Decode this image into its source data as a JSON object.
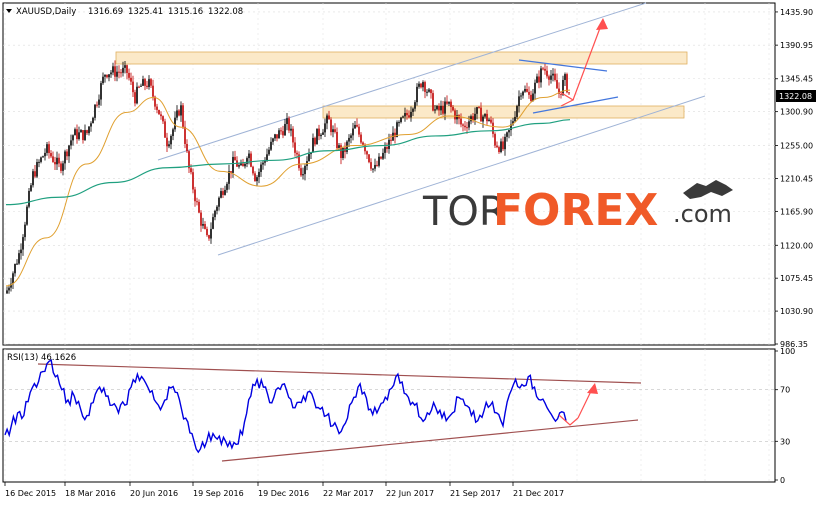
{
  "chart_data": [
    {
      "type": "candlestick",
      "symbol_header": "XAUUSD,Daily",
      "ohlc_header": [
        "1316.69",
        "1325.41",
        "1315.16",
        "1322.08"
      ],
      "price_label": "1322.08",
      "y_ticks": [
        "1435.90",
        "1390.95",
        "1345.45",
        "1300.90",
        "1255.00",
        "1210.45",
        "1165.90",
        "1120.00",
        "1075.45",
        "1030.90",
        "986.35"
      ],
      "x_ticks": [
        "16 Dec 2015",
        "18 Mar 2016",
        "20 Jun 2016",
        "19 Sep 2016",
        "19 Dec 2016",
        "22 Mar 2017",
        "22 Jun 2017",
        "21 Sep 2017",
        "21 Dec 2017"
      ],
      "ylim": [
        985,
        1448
      ],
      "price_path": [
        [
          0,
          1055
        ],
        [
          0.05,
          1110
        ],
        [
          0.1,
          1215
        ],
        [
          0.15,
          1250
        ],
        [
          0.2,
          1225
        ],
        [
          0.25,
          1270
        ],
        [
          0.3,
          1270
        ],
        [
          0.37,
          1355
        ],
        [
          0.45,
          1355
        ],
        [
          0.48,
          1320
        ],
        [
          0.5,
          1335
        ],
        [
          0.53,
          1340
        ],
        [
          0.57,
          1300
        ],
        [
          0.6,
          1260
        ],
        [
          0.62,
          1275
        ],
        [
          0.65,
          1310
        ],
        [
          0.68,
          1225
        ],
        [
          0.72,
          1160
        ],
        [
          0.75,
          1125
        ],
        [
          0.78,
          1170
        ],
        [
          0.8,
          1190
        ],
        [
          0.85,
          1235
        ],
        [
          0.88,
          1220
        ],
        [
          0.9,
          1250
        ],
        [
          0.93,
          1210
        ],
        [
          0.96,
          1235
        ],
        [
          1.0,
          1265
        ],
        [
          1.05,
          1285
        ],
        [
          1.1,
          1220
        ],
        [
          1.15,
          1265
        ],
        [
          1.2,
          1290
        ],
        [
          1.25,
          1240
        ],
        [
          1.3,
          1280
        ],
        [
          1.33,
          1260
        ],
        [
          1.37,
          1220
        ],
        [
          1.4,
          1240
        ],
        [
          1.45,
          1275
        ],
        [
          1.5,
          1300
        ],
        [
          1.55,
          1345
        ],
        [
          1.58,
          1320
        ],
        [
          1.6,
          1300
        ],
        [
          1.65,
          1310
        ],
        [
          1.7,
          1280
        ],
        [
          1.75,
          1300
        ],
        [
          1.8,
          1290
        ],
        [
          1.82,
          1260
        ],
        [
          1.85,
          1250
        ],
        [
          1.88,
          1280
        ],
        [
          1.92,
          1335
        ],
        [
          1.95,
          1320
        ],
        [
          2.0,
          1360
        ],
        [
          2.03,
          1350
        ],
        [
          2.06,
          1325
        ],
        [
          2.08,
          1345
        ],
        [
          2.1,
          1322
        ]
      ],
      "ma_fast": [
        [
          0,
          1065
        ],
        [
          0.15,
          1130
        ],
        [
          0.3,
          1230
        ],
        [
          0.45,
          1300
        ],
        [
          0.55,
          1320
        ],
        [
          0.65,
          1280
        ],
        [
          0.8,
          1220
        ],
        [
          0.95,
          1200
        ],
        [
          1.1,
          1230
        ],
        [
          1.3,
          1255
        ],
        [
          1.5,
          1270
        ],
        [
          1.65,
          1295
        ],
        [
          1.85,
          1280
        ],
        [
          2.0,
          1320
        ],
        [
          2.1,
          1330
        ]
      ],
      "ma_slow": [
        [
          0,
          1175
        ],
        [
          0.2,
          1185
        ],
        [
          0.4,
          1205
        ],
        [
          0.6,
          1225
        ],
        [
          0.8,
          1230
        ],
        [
          1.0,
          1235
        ],
        [
          1.2,
          1248
        ],
        [
          1.4,
          1255
        ],
        [
          1.6,
          1268
        ],
        [
          1.8,
          1275
        ],
        [
          2.0,
          1285
        ],
        [
          2.1,
          1290
        ]
      ],
      "colors": {
        "up_candle": "#000000",
        "down_candle": "#c00000",
        "ma_fast": "#e0a030",
        "ma_slow": "#20a080",
        "channel": "#9fb3d6",
        "zone_fill": "#fbe9c8",
        "zone_border": "#e0b060",
        "arrow": "#ff5050",
        "wedge_line": "#4477dd"
      }
    },
    {
      "type": "line",
      "name": "RSI(13) 46.1626",
      "y_ticks": [
        "100",
        "70",
        "30",
        "0"
      ],
      "ylim": [
        0,
        100
      ],
      "values": [
        35,
        42,
        52,
        50,
        68,
        72,
        84,
        92,
        80,
        70,
        62,
        65,
        55,
        50,
        60,
        72,
        65,
        58,
        52,
        58,
        72,
        82,
        78,
        68,
        60,
        58,
        72,
        68,
        55,
        45,
        30,
        24,
        30,
        36,
        34,
        30,
        25,
        28,
        45,
        65,
        78,
        72,
        60,
        70,
        74,
        64,
        56,
        60,
        68,
        62,
        55,
        50,
        42,
        36,
        44,
        60,
        72,
        68,
        55,
        52,
        60,
        70,
        80,
        76,
        64,
        58,
        48,
        52,
        60,
        54,
        46,
        52,
        64,
        58,
        50,
        46,
        54,
        58,
        52,
        42,
        66,
        78,
        74,
        80,
        72,
        62,
        56,
        48,
        52,
        46
      ],
      "colors": {
        "line": "#0000e0",
        "trend": "#a05050"
      }
    }
  ],
  "watermark": {
    "part1": "TOR",
    "part2": "FOREX",
    "part3": ".com"
  }
}
